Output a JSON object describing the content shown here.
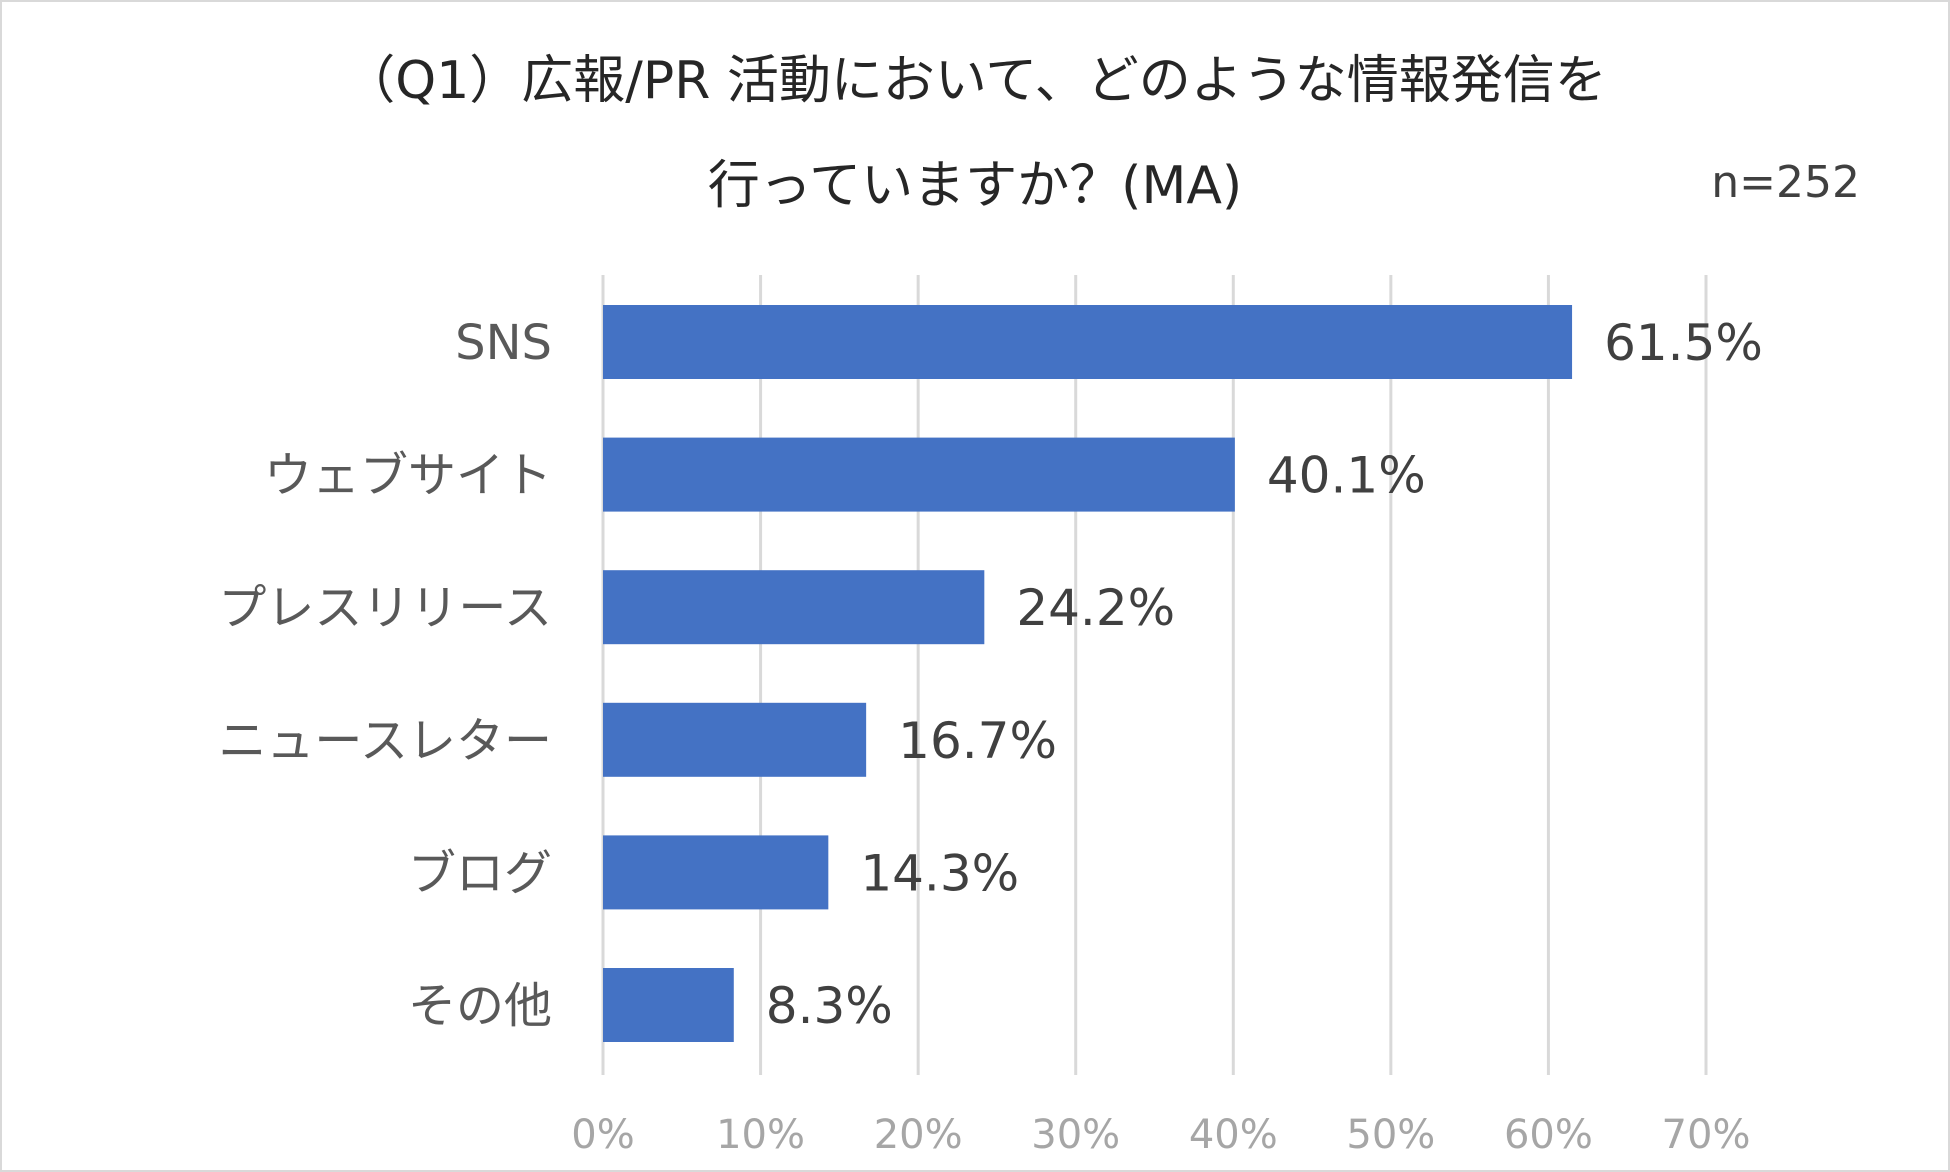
{
  "chart_data": {
    "type": "bar",
    "orientation": "horizontal",
    "title": "（Q1）広報/PR 活動において、どのような情報発信を 行っていますか？(MA)",
    "title_lines": [
      "（Q1）広報/PR 活動において、どのような情報発信を",
      "行っていますか？(MA)"
    ],
    "note": "n=252",
    "categories": [
      "SNS",
      "ウェブサイト",
      "プレスリリース",
      "ニュースレター",
      "ブログ",
      "その他"
    ],
    "values": [
      61.5,
      40.1,
      24.2,
      16.7,
      14.3,
      8.3
    ],
    "data_labels": [
      "61.5%",
      "40.1%",
      "24.2%",
      "16.7%",
      "14.3%",
      "8.3%"
    ],
    "x_ticks": [
      "0%",
      "10%",
      "20%",
      "30%",
      "40%",
      "50%",
      "60%",
      "70%"
    ],
    "xlim": [
      0,
      70
    ],
    "xlabel": "",
    "ylabel": "",
    "grid": "vertical",
    "legend": "none",
    "colors": {
      "bar": "#4472C4",
      "grid": "#D9D9D9",
      "category_text": "#595959",
      "label_text": "#404040",
      "tick_text": "#A6A6A6",
      "title_text": "#262626"
    }
  }
}
